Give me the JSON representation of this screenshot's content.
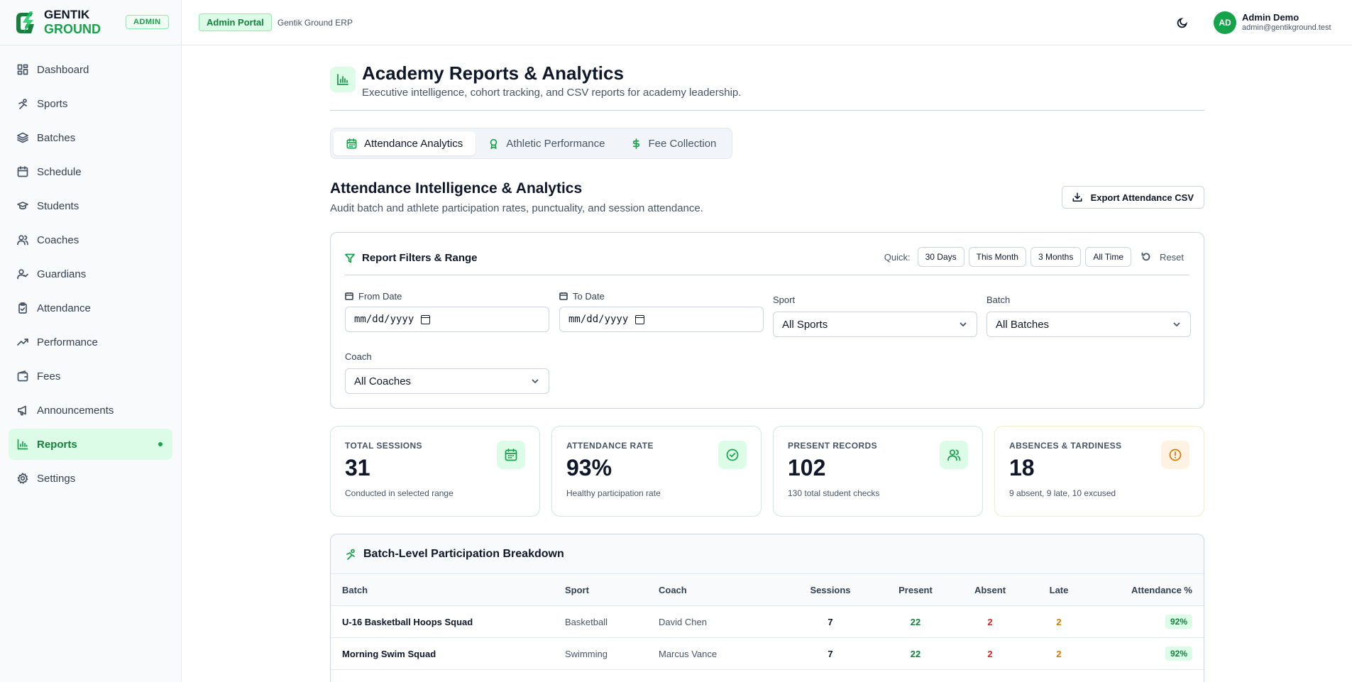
{
  "brand": {
    "line1": "GENTIK",
    "line2": "GROUND",
    "role_badge": "ADMIN"
  },
  "header": {
    "portal_badge": "Admin Portal",
    "portal_sub": "Gentik Ground ERP",
    "avatar_initials": "AD",
    "user_name": "Admin Demo",
    "user_email": "admin@gentikground.test"
  },
  "sidebar": {
    "items": [
      {
        "label": "Dashboard",
        "icon": "dashboard-icon"
      },
      {
        "label": "Sports",
        "icon": "sports-icon"
      },
      {
        "label": "Batches",
        "icon": "layers-icon"
      },
      {
        "label": "Schedule",
        "icon": "calendar-icon"
      },
      {
        "label": "Students",
        "icon": "graduation-cap-icon"
      },
      {
        "label": "Coaches",
        "icon": "users-icon"
      },
      {
        "label": "Guardians",
        "icon": "user-check-icon"
      },
      {
        "label": "Attendance",
        "icon": "clipboard-check-icon"
      },
      {
        "label": "Performance",
        "icon": "trending-up-icon"
      },
      {
        "label": "Fees",
        "icon": "wallet-icon"
      },
      {
        "label": "Announcements",
        "icon": "megaphone-icon"
      },
      {
        "label": "Reports",
        "icon": "bar-chart-icon",
        "active": true
      },
      {
        "label": "Settings",
        "icon": "gear-icon"
      }
    ]
  },
  "page": {
    "title": "Academy Reports & Analytics",
    "subtitle": "Executive intelligence, cohort tracking, and CSV reports for academy leadership."
  },
  "tabs": [
    {
      "label": "Attendance Analytics",
      "active": true
    },
    {
      "label": "Athletic Performance"
    },
    {
      "label": "Fee Collection"
    }
  ],
  "section": {
    "title": "Attendance Intelligence & Analytics",
    "subtitle": "Audit batch and athlete participation rates, punctuality, and session attendance.",
    "export_label": "Export Attendance CSV"
  },
  "filters": {
    "title": "Report Filters & Range",
    "quick_label": "Quick:",
    "quick": [
      "30 Days",
      "This Month",
      "3 Months",
      "All Time"
    ],
    "reset_label": "Reset",
    "from_label": "From Date",
    "from_value": "mm/dd/yyyy",
    "to_label": "To Date",
    "to_value": "mm/dd/yyyy",
    "sport_label": "Sport",
    "sport_value": "All Sports",
    "batch_label": "Batch",
    "batch_value": "All Batches",
    "coach_label": "Coach",
    "coach_value": "All Coaches"
  },
  "stats": [
    {
      "label": "TOTAL SESSIONS",
      "value": "31",
      "note": "Conducted in selected range",
      "icon": "calendar-icon"
    },
    {
      "label": "ATTENDANCE RATE",
      "value": "93%",
      "note": "Healthy participation rate",
      "icon": "check-circle-icon"
    },
    {
      "label": "PRESENT RECORDS",
      "value": "102",
      "note": "130 total student checks",
      "icon": "users-icon"
    },
    {
      "label": "ABSENCES & TARDINESS",
      "value": "18",
      "note": "9 absent, 9 late, 10 excused",
      "icon": "alert-circle-icon"
    }
  ],
  "table": {
    "title": "Batch-Level Participation Breakdown",
    "columns": [
      "Batch",
      "Sport",
      "Coach",
      "Sessions",
      "Present",
      "Absent",
      "Late",
      "Attendance %"
    ],
    "rows": [
      [
        "U-16 Basketball Hoops Squad",
        "Basketball",
        "David Chen",
        "7",
        "22",
        "2",
        "2",
        "92%"
      ],
      [
        "Morning Swim Squad",
        "Swimming",
        "Marcus Vance",
        "7",
        "22",
        "2",
        "2",
        "92%"
      ]
    ]
  },
  "colors": {
    "accent": "#16a34a",
    "accent_bg": "#dcfce7",
    "danger": "#dc2626",
    "warning": "#d97706"
  }
}
